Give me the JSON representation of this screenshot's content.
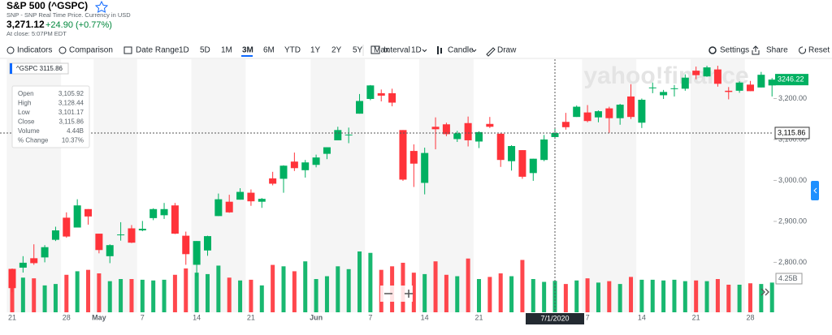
{
  "header": {
    "title": "S&P 500 (^GSPC)",
    "subtitle": "SNP - SNP Real Time Price. Currency in USD",
    "price": "3,271.12",
    "change": "+24.90 (+0.77%)",
    "status": "At close: 5:07PM EDT"
  },
  "toolbar": {
    "indicators": "Indicators",
    "comparison": "Comparison",
    "date_range": "Date Range",
    "ranges": [
      "1D",
      "5D",
      "1M",
      "3M",
      "6M",
      "YTD",
      "1Y",
      "2Y",
      "5Y",
      "Max"
    ],
    "active_range": "3M",
    "interval": "Interval",
    "interval_value": "1D",
    "candle": "Candle",
    "draw": "Draw",
    "settings": "Settings",
    "share": "Share",
    "reset": "Reset"
  },
  "tooltip": {
    "symbol": "^GSPC 3115.86",
    "rows": [
      {
        "label": "Open",
        "value": "3,105.92"
      },
      {
        "label": "High",
        "value": "3,128.44"
      },
      {
        "label": "Low",
        "value": "3,101.17"
      },
      {
        "label": "Close",
        "value": "3,115.86"
      },
      {
        "label": "Volume",
        "value": "4.44B"
      },
      {
        "label": "% Change",
        "value": "10.37%"
      }
    ]
  },
  "watermark": "yahoo!finance",
  "crosshair": {
    "date": "7/1/2020",
    "price": "3,115.86",
    "index": 50,
    "level": 3115.86
  },
  "last_price_label": "3246.22",
  "volume_label": "4.25B",
  "chart_data": {
    "type": "candlestick",
    "categories": [
      "21",
      null,
      null,
      null,
      null,
      "28",
      null,
      null,
      "May",
      null,
      null,
      null,
      "7",
      null,
      null,
      null,
      null,
      "14",
      null,
      null,
      null,
      null,
      "21",
      null,
      null,
      null,
      null,
      null,
      "Jun",
      null,
      null,
      null,
      null,
      "7",
      null,
      null,
      null,
      null,
      "14",
      null,
      null,
      null,
      null,
      "21",
      null,
      null,
      null,
      null,
      null,
      null,
      null,
      null,
      null,
      "7",
      null,
      null,
      null,
      null,
      "14",
      null,
      null,
      null,
      null,
      "21",
      null,
      null,
      null,
      null,
      "28",
      null,
      null
    ],
    "open": [
      2784,
      2787,
      2810,
      2812,
      2855,
      2909,
      2885,
      2930,
      2870,
      2815,
      2868,
      2883,
      2878,
      2908,
      2915,
      2939,
      2865,
      2794,
      2829,
      2913,
      2948,
      2953,
      2970,
      2948,
      3005,
      3004,
      3046,
      3025,
      3038,
      3065,
      3098,
      3112,
      3163,
      3199,
      3213,
      3213,
      3123,
      3072,
      2994,
      3131,
      3137,
      3101,
      3140,
      3095,
      3138,
      3114,
      3047,
      3074,
      3018,
      3050,
      3105.92,
      3143,
      3155,
      3166,
      3154,
      3176,
      3152,
      3205,
      3141,
      3226,
      3208,
      3224,
      3224,
      3268,
      3254,
      3271,
      3219,
      3219,
      3234,
      3227,
      3232
    ],
    "high": [
      2785,
      2815,
      2844,
      2842,
      2887,
      2922,
      2954,
      2930,
      2870,
      2844,
      2898,
      2891,
      2901,
      2932,
      2945,
      2945,
      2875,
      2852,
      2865,
      2968,
      2965,
      2981,
      2978,
      2957,
      3021,
      3037,
      3068,
      3050,
      3063,
      3081,
      3131,
      3129,
      3211,
      3233,
      3222,
      3224,
      3123,
      3088,
      3080,
      3154,
      3141,
      3121,
      3156,
      3120,
      3155,
      3115,
      3086,
      3074,
      3053,
      3111,
      3128.44,
      3165,
      3183,
      3184,
      3171,
      3180,
      3187,
      3235,
      3200,
      3239,
      3221,
      3233,
      3259,
      3278,
      3280,
      3280,
      3228,
      3242,
      3243,
      3265,
      3250
    ],
    "low": [
      2727,
      2775,
      2794,
      2800,
      2852,
      2860,
      2885,
      2892,
      2822,
      2798,
      2853,
      2847,
      2876,
      2903,
      2906,
      2869,
      2794,
      2766,
      2816,
      2913,
      2921,
      2953,
      2938,
      2933,
      2988,
      2970,
      3023,
      3007,
      3032,
      3052,
      3098,
      3091,
      3163,
      3196,
      3193,
      3181,
      2999,
      2984,
      2966,
      3076,
      3108,
      3094,
      3083,
      3079,
      3128,
      3033,
      3024,
      3004,
      2999,
      3047,
      3101.17,
      3124,
      3155,
      3142,
      3142,
      3116,
      3136,
      3150,
      3128,
      3213,
      3199,
      3205,
      3219,
      3247,
      3253,
      3229,
      3198,
      3214,
      3218,
      3227,
      3205
    ],
    "close": [
      2737,
      2799,
      2798,
      2837,
      2878,
      2863,
      2939,
      2912,
      2830,
      2842,
      2868,
      2848,
      2882,
      2930,
      2930,
      2870,
      2820,
      2852,
      2864,
      2954,
      2922,
      2972,
      2949,
      2955,
      2992,
      3036,
      3030,
      3044,
      3056,
      3081,
      3123,
      3112,
      3194,
      3232,
      3207,
      3190,
      3002,
      3041,
      3067,
      3125,
      3113,
      3115,
      3098,
      3118,
      3131,
      3050,
      3084,
      3009,
      3053,
      3100,
      3115.86,
      3130,
      3180,
      3145,
      3169,
      3152,
      3185,
      3155,
      3197,
      3227,
      3216,
      3225,
      3251,
      3257,
      3276,
      3236,
      3216,
      3239,
      3218,
      3258,
      3246.22
    ],
    "volume": [
      5.0,
      4.9,
      4.8,
      3.8,
      4.0,
      5.3,
      5.8,
      6.0,
      5.5,
      4.4,
      4.7,
      4.7,
      4.6,
      4.5,
      4.6,
      5.3,
      6.2,
      5.6,
      5.4,
      6.6,
      4.9,
      4.5,
      4.6,
      3.8,
      6.7,
      6.5,
      5.8,
      7.2,
      4.7,
      5.1,
      6.5,
      6.1,
      8.6,
      8.4,
      6.0,
      6.5,
      7.0,
      5.6,
      5.4,
      7.2,
      5.3,
      5.1,
      7.6,
      4.7,
      5.0,
      5.5,
      5.1,
      7.4,
      4.7,
      4.3,
      4.44,
      4.0,
      4.5,
      4.8,
      4.2,
      4.4,
      4.0,
      5.0,
      4.6,
      4.6,
      4.5,
      4.6,
      4.4,
      4.5,
      4.4,
      4.7,
      3.9,
      3.9,
      4.1,
      4.0,
      4.2
    ],
    "up_color": "#00b061",
    "down_color": "#ff333a",
    "ylim": [
      2678,
      3296
    ],
    "yticks": [
      {
        "value": 2800,
        "label": "2,800.00"
      },
      {
        "value": 2900,
        "label": "2,900.00"
      },
      {
        "value": 3000,
        "label": "3,000.00"
      },
      {
        "value": 3100,
        "label": "3,100.00"
      },
      {
        "value": 3200,
        "label": "3,200.00"
      }
    ]
  }
}
